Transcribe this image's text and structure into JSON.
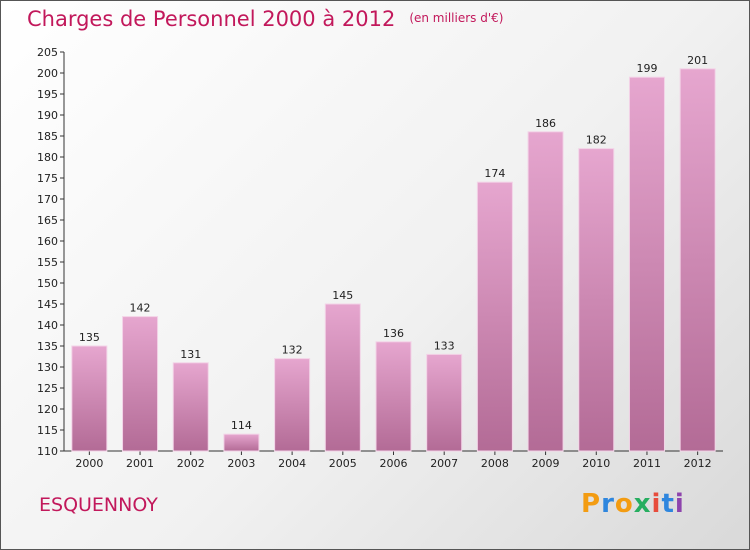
{
  "header": {
    "title": "Charges de Personnel 2000 à 2012",
    "subtitle": "(en milliers d'€)"
  },
  "footer": {
    "commune": "ESQUENNOY",
    "logo": [
      "P",
      "r",
      "o",
      "x",
      "i",
      "t",
      "i"
    ]
  },
  "colors": {
    "accent": "#c2185b",
    "bar_top": "#e6a6cf",
    "bar_bottom": "#b36b96",
    "logo": [
      "#f39c12",
      "#2e86de",
      "#f39c12",
      "#27ae60",
      "#e74c3c",
      "#2e86de",
      "#8e44ad"
    ]
  },
  "chart_data": {
    "type": "bar",
    "categories": [
      "2000",
      "2001",
      "2002",
      "2003",
      "2004",
      "2005",
      "2006",
      "2007",
      "2008",
      "2009",
      "2010",
      "2011",
      "2012"
    ],
    "values": [
      135,
      142,
      131,
      114,
      132,
      145,
      136,
      133,
      174,
      186,
      182,
      199,
      201
    ],
    "ylim": [
      110,
      205
    ],
    "yticks": [
      110,
      115,
      120,
      125,
      130,
      135,
      140,
      145,
      150,
      155,
      160,
      165,
      170,
      175,
      180,
      185,
      190,
      195,
      200,
      205
    ],
    "grid": false
  }
}
